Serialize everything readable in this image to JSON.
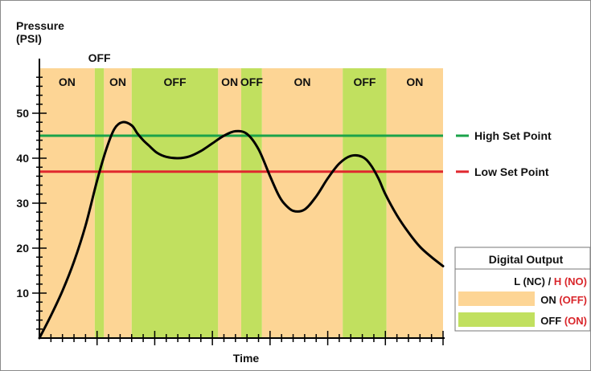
{
  "chart_data": {
    "type": "line",
    "ylabel_line1": "Pressure",
    "ylabel_line2": "(PSI)",
    "xlabel": "Time",
    "ylim": [
      0,
      60
    ],
    "yticks": [
      10,
      20,
      30,
      40,
      50
    ],
    "xlim": [
      0,
      35
    ],
    "x_minor_ticks": 35,
    "series": [
      {
        "x": [
          0,
          1,
          2,
          3,
          4,
          5,
          5.8,
          6.5,
          7.2,
          8,
          8.5,
          9,
          9.5,
          10.2,
          11,
          12,
          13,
          14,
          15,
          16,
          17,
          18,
          19,
          20,
          20.7,
          21.2,
          22,
          23,
          24,
          25,
          26,
          27,
          28,
          28.7,
          29.4,
          30,
          31,
          32,
          33,
          34,
          35
        ],
        "y": [
          0,
          5,
          10.5,
          17,
          25,
          35,
          42,
          46.5,
          48,
          47.3,
          45.5,
          44,
          42.8,
          41.2,
          40.3,
          40,
          40.4,
          41.6,
          43.3,
          45,
          46,
          45.4,
          42,
          36,
          32,
          30,
          28.3,
          28.6,
          31.5,
          35.5,
          38.8,
          40.5,
          40.3,
          38.6,
          35.5,
          32,
          27.3,
          23.5,
          20.3,
          18,
          16
        ]
      }
    ],
    "set_points": [
      {
        "label": "High Set Point",
        "value": 45,
        "color": "#1ba34a"
      },
      {
        "label": "Low Set Point",
        "value": 37,
        "color": "#e0282e"
      }
    ],
    "states": [
      {
        "label": "ON",
        "start": 0,
        "end": 4.8,
        "state": "on"
      },
      {
        "label": "OFF",
        "start": 4.8,
        "end": 5.6,
        "state": "off"
      },
      {
        "label": "ON",
        "start": 5.6,
        "end": 8.0,
        "state": "on"
      },
      {
        "label": "OFF",
        "start": 8.0,
        "end": 15.5,
        "state": "off"
      },
      {
        "label": "ON",
        "start": 15.5,
        "end": 17.5,
        "state": "on"
      },
      {
        "label": "OFF",
        "start": 17.5,
        "end": 19.3,
        "state": "off"
      },
      {
        "label": "ON",
        "start": 19.3,
        "end": 26.3,
        "state": "on"
      },
      {
        "label": "OFF",
        "start": 26.3,
        "end": 30.1,
        "state": "off"
      },
      {
        "label": "ON",
        "start": 30.1,
        "end": 35,
        "state": "on"
      }
    ],
    "legend": {
      "title": "Digital Output",
      "mode_black_1": "L (NC) / ",
      "mode_red": "H (NO)",
      "rows": [
        {
          "state": "on",
          "main": "ON",
          "alt": "(OFF)"
        },
        {
          "state": "off",
          "main": "OFF",
          "alt": "(ON)"
        }
      ]
    }
  },
  "colors": {
    "on": "#fdd595",
    "off": "#c1e05f",
    "curve": "#000000",
    "high": "#1ba34a",
    "low": "#e0282e",
    "red_text": "#d9262b"
  }
}
